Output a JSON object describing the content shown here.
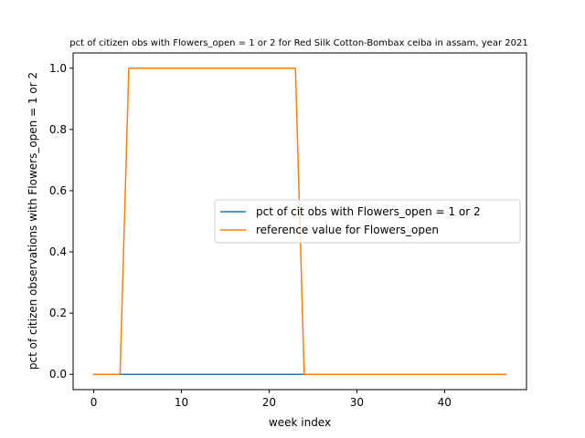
{
  "chart_data": {
    "type": "line",
    "title": "pct of citizen obs with Flowers_open = 1 or 2 for Red Silk Cotton-Bombax ceiba in assam, year 2021",
    "xlabel": "week index",
    "ylabel": "pct of citizen observations with Flowers_open = 1 or 2",
    "xlim": [
      -2.35,
      49.35
    ],
    "ylim": [
      -0.05,
      1.05
    ],
    "xticks": [
      0,
      10,
      20,
      30,
      40
    ],
    "yticks": [
      0.0,
      0.2,
      0.4,
      0.6,
      0.8,
      1.0
    ],
    "ytick_labels": [
      "0.0",
      "0.2",
      "0.4",
      "0.6",
      "0.8",
      "1.0"
    ],
    "grid": false,
    "legend_position": "center-right",
    "series": [
      {
        "name": "pct of cit obs with Flowers_open = 1 or 2",
        "color": "#1f77b4",
        "x": [
          0,
          47
        ],
        "y": [
          0,
          0
        ]
      },
      {
        "name": "reference value for Flowers_open",
        "color": "#ff7f0e",
        "x": [
          0,
          3,
          4,
          23,
          24,
          47
        ],
        "y": [
          0,
          0,
          1,
          1,
          0,
          0
        ]
      }
    ]
  }
}
